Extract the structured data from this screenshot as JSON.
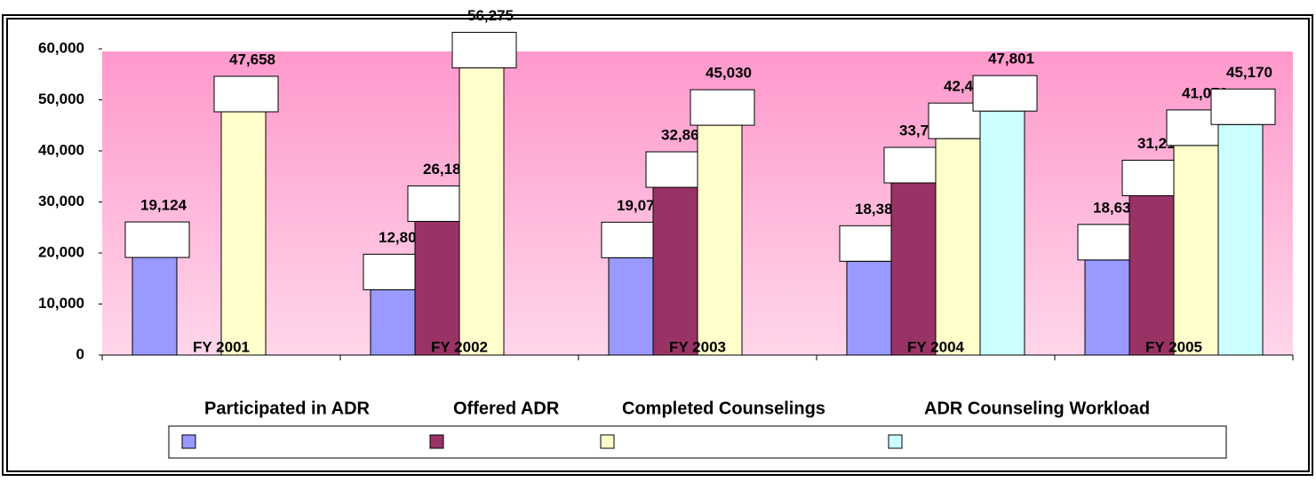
{
  "chart_data": {
    "type": "bar",
    "categories": [
      "FY 2001",
      "FY 2002",
      "FY 2003",
      "FY 2004",
      "FY 2005"
    ],
    "series": [
      {
        "name": "Participated in ADR",
        "color": "#9999ff",
        "values": [
          19124,
          12800,
          19075,
          18381,
          18634
        ],
        "value_labels": [
          "19,124",
          "12,800",
          "19,075",
          "18,381",
          "18,634"
        ]
      },
      {
        "name": "Offered ADR",
        "color": "#993366",
        "values": [
          null,
          26185,
          32864,
          33735,
          31217
        ],
        "value_labels": [
          null,
          "26,185",
          "32,864",
          "33,735",
          "31,217"
        ]
      },
      {
        "name": "Completed Counselings",
        "color": "#ffffcc",
        "values": [
          47658,
          56275,
          45030,
          42412,
          41070
        ],
        "value_labels": [
          "47,658",
          "56,275",
          "45,030",
          "42,412",
          "41,070"
        ]
      },
      {
        "name": "ADR Counseling Workload",
        "color": "#ccffff",
        "values": [
          null,
          null,
          null,
          47801,
          45170
        ],
        "value_labels": [
          null,
          null,
          null,
          "47,801",
          "45,170"
        ]
      }
    ],
    "ylim": [
      0,
      60000
    ],
    "yticks": [
      0,
      {
        "value": 10000,
        "label": "10,000"
      },
      {
        "value": 20000,
        "label": "20,000"
      },
      {
        "value": 30000,
        "label": "30,000"
      },
      {
        "value": 40000,
        "label": "40,000"
      },
      {
        "value": 50000,
        "label": "50,000"
      },
      {
        "value": 60000,
        "label": "60,000"
      }
    ],
    "legend": "bottom"
  }
}
